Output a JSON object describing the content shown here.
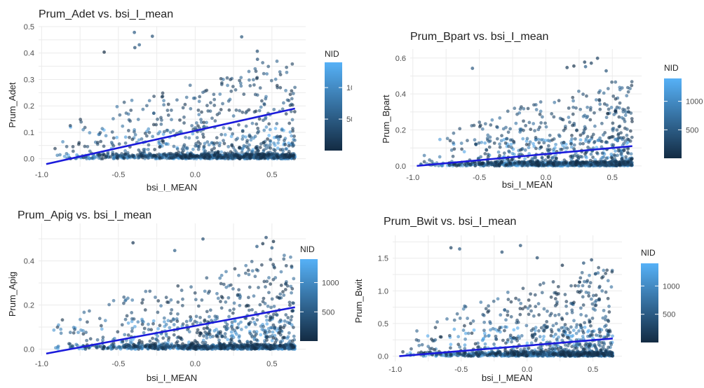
{
  "colors": {
    "nid_low": "#132b43",
    "nid_high": "#56b1f7",
    "trend": "#1a1adb",
    "grid": "#ebebeb"
  },
  "legend": {
    "title": "NID",
    "breaks": [
      500,
      1000
    ],
    "range": [
      1,
      1400
    ]
  },
  "chart_data": [
    {
      "type": "scatter",
      "title": "Prum_Adet vs. bsi_I_mean",
      "xlabel": "bsi_I_MEAN",
      "ylabel": "Prum_Adet",
      "xlim": [
        -1.02,
        0.72
      ],
      "ylim": [
        -0.03,
        0.5
      ],
      "xticks": [
        -1.0,
        -0.5,
        0.0,
        0.5
      ],
      "xtick_labels": [
        "-1.0",
        "-0.5",
        "0.0",
        "0.5"
      ],
      "yticks": [
        0.0,
        0.1,
        0.2,
        0.3,
        0.4,
        0.5
      ],
      "ytick_labels": [
        "0.0",
        "0.1",
        "0.2",
        "0.3",
        "0.4",
        "0.5"
      ],
      "trend": {
        "x": [
          -0.97,
          0.65
        ],
        "y": [
          -0.02,
          0.19
        ]
      },
      "n_points": 1400,
      "points_range": {
        "x": [
          -0.97,
          0.65
        ],
        "y": [
          0.0,
          0.48
        ]
      },
      "grid": true,
      "legend": "right"
    },
    {
      "type": "scatter",
      "title": "Prum_Bpart vs. bsi_I_mean",
      "xlabel": "bsi_I_MEAN",
      "ylabel": "Prum_Bpart",
      "xlim": [
        -1.02,
        0.72
      ],
      "ylim": [
        -0.02,
        0.65
      ],
      "xticks": [
        -1.0,
        -0.5,
        0.0,
        0.5
      ],
      "xtick_labels": [
        "-1.0",
        "-0.5",
        "0.0",
        "0.5"
      ],
      "yticks": [
        0.0,
        0.2,
        0.4,
        0.6
      ],
      "ytick_labels": [
        "0.0",
        "0.2",
        "0.4",
        "0.6"
      ],
      "trend": {
        "x": [
          -0.97,
          0.65
        ],
        "y": [
          0.0,
          0.11
        ]
      },
      "n_points": 1400,
      "points_range": {
        "x": [
          -0.97,
          0.65
        ],
        "y": [
          0.0,
          0.62
        ]
      },
      "grid": true,
      "legend": "right"
    },
    {
      "type": "scatter",
      "title": "Prum_Apig vs. bsi_I_mean",
      "xlabel": "bsi_I_MEAN",
      "ylabel": "Prum_Apig",
      "xlim": [
        -1.02,
        0.72
      ],
      "ylim": [
        -0.03,
        0.57
      ],
      "xticks": [
        -1.0,
        -0.5,
        0.0,
        0.5
      ],
      "xtick_labels": [
        "-1.0",
        "-0.5",
        "0.0",
        "0.5"
      ],
      "yticks": [
        0.0,
        0.2,
        0.4
      ],
      "ytick_labels": [
        "0.0",
        "0.2",
        "0.4"
      ],
      "trend": {
        "x": [
          -0.97,
          0.65
        ],
        "y": [
          -0.02,
          0.19
        ]
      },
      "n_points": 1400,
      "points_range": {
        "x": [
          -0.97,
          0.65
        ],
        "y": [
          0.0,
          0.55
        ]
      },
      "grid": true,
      "legend": "right"
    },
    {
      "type": "scatter",
      "title": "Prum_Bwit vs. bsi_I_mean",
      "xlabel": "bsi_I_MEAN",
      "ylabel": "Prum_Bwit",
      "xlim": [
        -1.02,
        0.72
      ],
      "ylim": [
        -0.08,
        1.85
      ],
      "xticks": [
        -1.0,
        -0.5,
        0.0,
        0.5
      ],
      "xtick_labels": [
        "-1.0",
        "-0.5",
        "0.0",
        "0.5"
      ],
      "yticks": [
        0.0,
        0.5,
        1.0,
        1.5
      ],
      "ytick_labels": [
        "0.0",
        "0.5",
        "1.0",
        "1.5"
      ],
      "trend": {
        "x": [
          -0.97,
          0.65
        ],
        "y": [
          0.0,
          0.27
        ]
      },
      "n_points": 1400,
      "points_range": {
        "x": [
          -0.97,
          0.65
        ],
        "y": [
          0.0,
          1.78
        ]
      },
      "grid": true,
      "legend": "right"
    }
  ]
}
